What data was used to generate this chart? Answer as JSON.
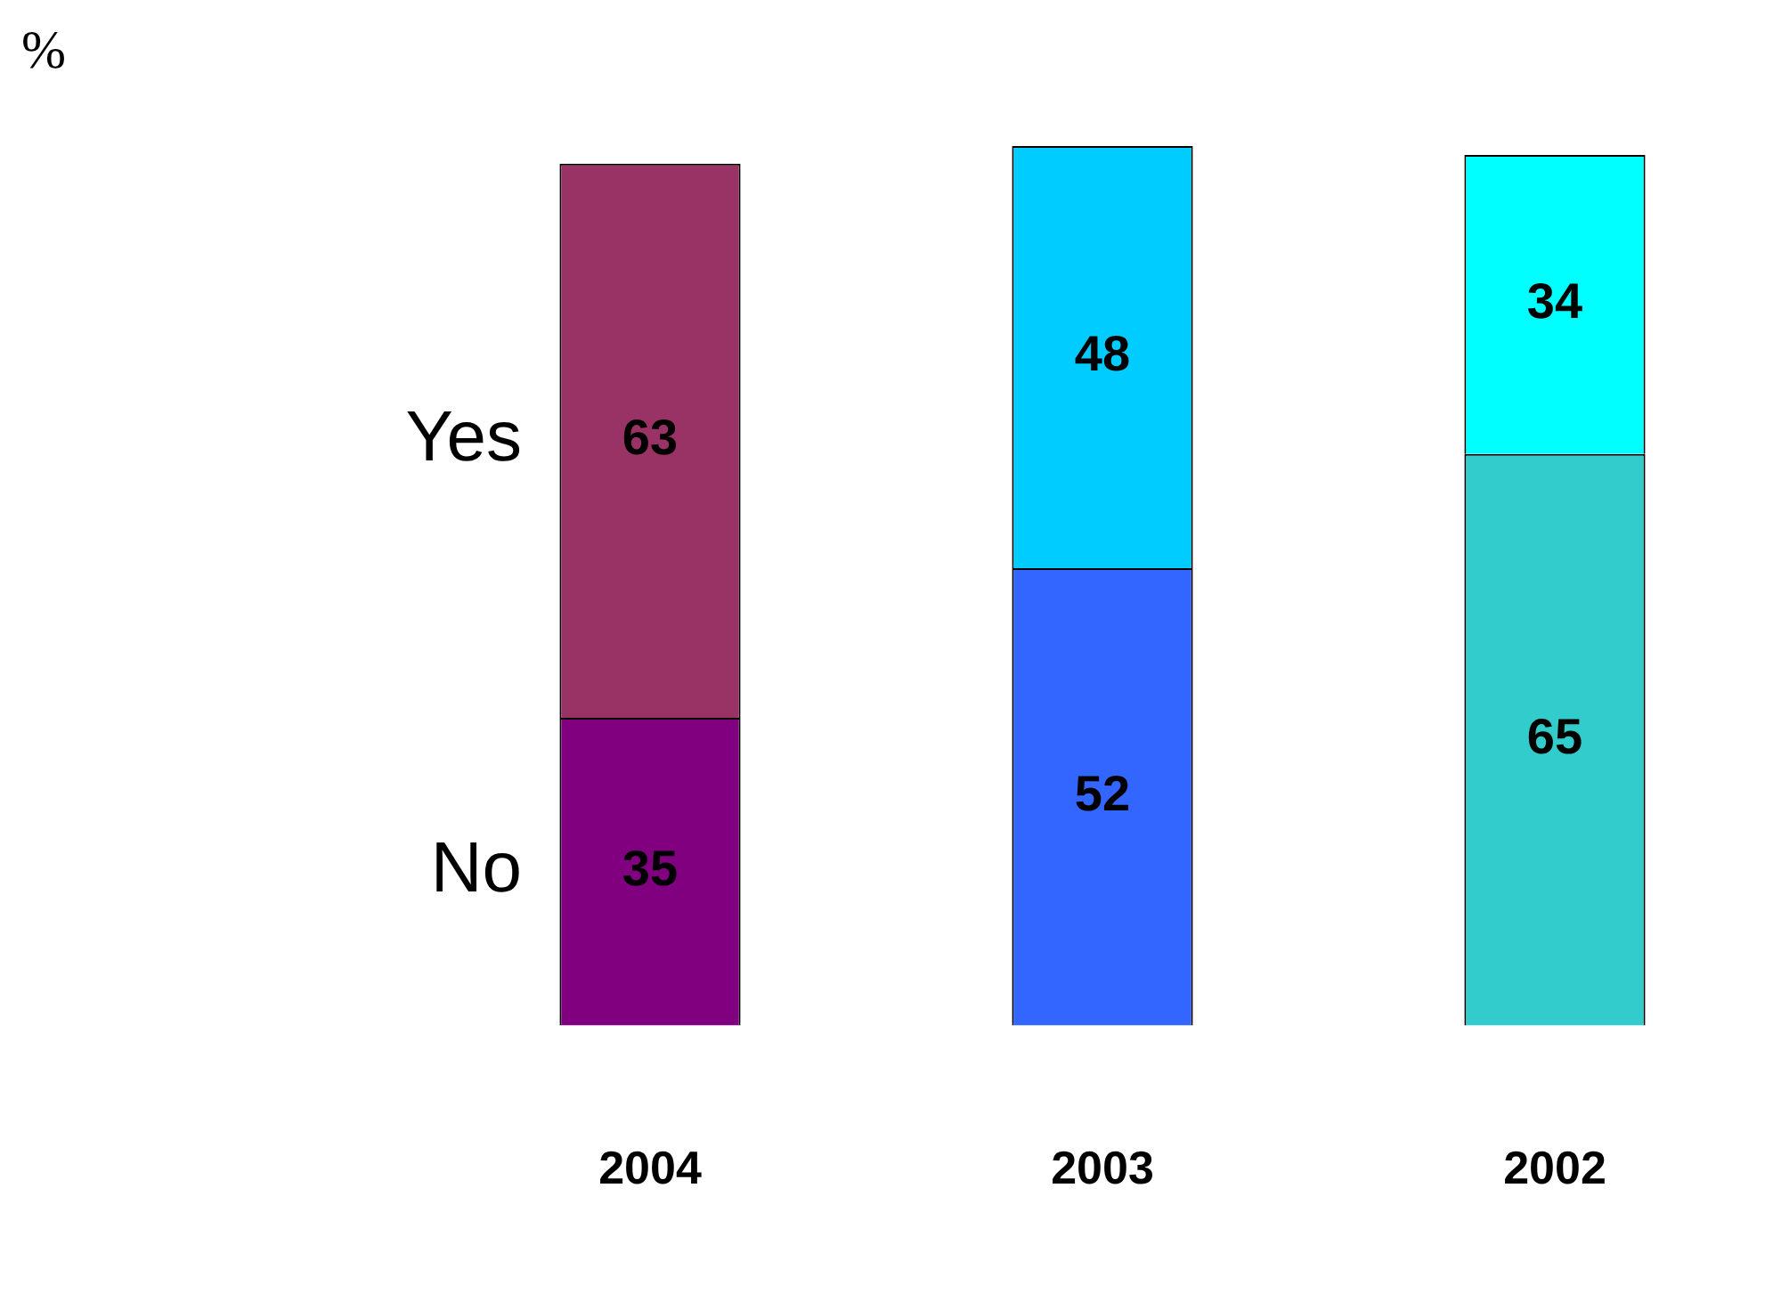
{
  "chart_data": {
    "type": "bar",
    "stacked": true,
    "annotations": [
      "%"
    ],
    "categories": [
      "2004",
      "2003",
      "2002"
    ],
    "ylim": [
      0,
      100
    ],
    "data_labels": true,
    "series": [
      {
        "name": "No",
        "colors": [
          "#800080",
          "#3366ff",
          "#33cccc"
        ],
        "values": [
          35,
          52,
          65
        ]
      },
      {
        "name": "Yes",
        "colors": [
          "#993366",
          "#00ccff",
          "#00ffff"
        ],
        "values": [
          63,
          48,
          34
        ]
      }
    ]
  }
}
